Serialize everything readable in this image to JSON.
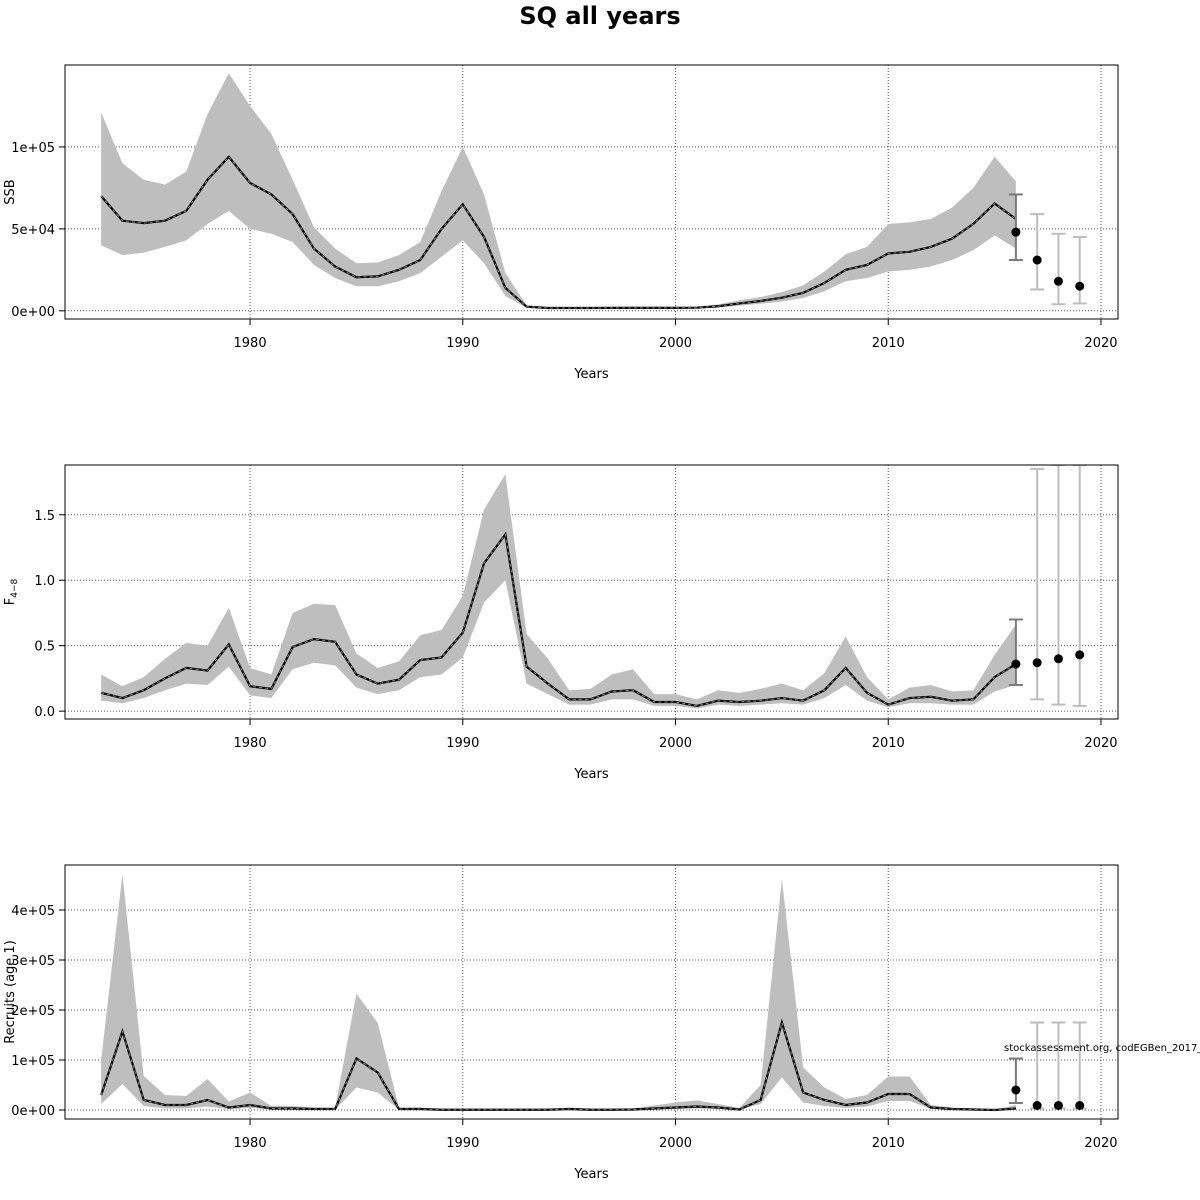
{
  "figure": {
    "title": "SQ all years",
    "source_note": "stockassessment.org, codEGBen_2017_"
  },
  "chart_data": [
    {
      "type": "line",
      "ylabel": "SSB",
      "xlabel": "Years",
      "xlim": [
        1971.3,
        2020.8
      ],
      "ylim": [
        -5000,
        150000
      ],
      "xticks": [
        1980,
        1990,
        2000,
        2010,
        2020
      ],
      "xtick_labels": [
        "1980",
        "1990",
        "2000",
        "2010",
        "2020"
      ],
      "yticks": [
        0,
        50000,
        100000
      ],
      "ytick_labels": [
        "0e+00",
        "5e+04",
        "1e+05"
      ],
      "grid": true,
      "series": [
        {
          "x": [
            1973,
            1974,
            1975,
            1976,
            1977,
            1978,
            1979,
            1980,
            1981,
            1982,
            1983,
            1984,
            1985,
            1986,
            1987,
            1988,
            1989,
            1990,
            1991,
            1992,
            1993,
            1994,
            1995,
            1996,
            1997,
            1998,
            1999,
            2000,
            2001,
            2002,
            2003,
            2004,
            2005,
            2006,
            2007,
            2008,
            2009,
            2010,
            2011,
            2012,
            2013,
            2014,
            2015,
            2016
          ],
          "estimate": [
            70000,
            55000,
            53500,
            55000,
            61000,
            80000,
            94000,
            78000,
            71000,
            59000,
            38000,
            27000,
            20500,
            21000,
            25000,
            31000,
            50000,
            65000,
            45000,
            14000,
            2500,
            1700,
            1700,
            1700,
            1800,
            1800,
            1800,
            1800,
            1900,
            2800,
            4500,
            6000,
            8000,
            11000,
            17000,
            25000,
            28000,
            35000,
            36000,
            39000,
            44000,
            53000,
            65500,
            56000
          ],
          "lower": [
            40000,
            34000,
            35500,
            39000,
            43000,
            53000,
            61000,
            50000,
            47000,
            42000,
            28000,
            20000,
            15000,
            15000,
            18000,
            23000,
            33000,
            43000,
            29000,
            9000,
            1800,
            1200,
            1200,
            1200,
            1300,
            1300,
            1300,
            1300,
            1400,
            2000,
            3200,
            4300,
            5700,
            7800,
            11900,
            18000,
            20000,
            24000,
            25000,
            27000,
            31000,
            37000,
            46000,
            38000
          ],
          "upper": [
            121000,
            90000,
            80000,
            77000,
            85000,
            120000,
            145000,
            125000,
            108000,
            80000,
            51000,
            38000,
            29000,
            29500,
            34000,
            42000,
            73000,
            100000,
            71000,
            23000,
            3400,
            2400,
            2400,
            2400,
            2500,
            2500,
            2500,
            2500,
            2600,
            3900,
            6400,
            8400,
            11400,
            15500,
            24000,
            34500,
            39000,
            53000,
            54000,
            56000,
            63000,
            75000,
            94000,
            79000
          ]
        }
      ],
      "forecast": {
        "x": [
          2016,
          2017,
          2018,
          2019
        ],
        "values": [
          48000,
          31000,
          18000,
          15000
        ],
        "lower": [
          31000,
          13000,
          4000,
          4500
        ],
        "upper": [
          71000,
          59000,
          47000,
          45000
        ]
      }
    },
    {
      "type": "line",
      "ylabel": "F4–8",
      "ylabel_main": "F",
      "ylabel_sub": "4−8",
      "xlabel": "Years",
      "xlim": [
        1971.3,
        2020.8
      ],
      "ylim": [
        -0.06,
        1.88
      ],
      "xticks": [
        1980,
        1990,
        2000,
        2010,
        2020
      ],
      "xtick_labels": [
        "1980",
        "1990",
        "2000",
        "2010",
        "2020"
      ],
      "yticks": [
        0,
        0.5,
        1.0,
        1.5
      ],
      "ytick_labels": [
        "0.0",
        "0.5",
        "1.0",
        "1.5"
      ],
      "grid": true,
      "series": [
        {
          "x": [
            1973,
            1974,
            1975,
            1976,
            1977,
            1978,
            1979,
            1980,
            1981,
            1982,
            1983,
            1984,
            1985,
            1986,
            1987,
            1988,
            1989,
            1990,
            1991,
            1992,
            1993,
            1994,
            1995,
            1996,
            1997,
            1998,
            1999,
            2000,
            2001,
            2002,
            2003,
            2004,
            2005,
            2006,
            2007,
            2008,
            2009,
            2010,
            2011,
            2012,
            2013,
            2014,
            2015,
            2016
          ],
          "estimate": [
            0.14,
            0.1,
            0.16,
            0.25,
            0.33,
            0.31,
            0.51,
            0.19,
            0.17,
            0.49,
            0.55,
            0.53,
            0.28,
            0.21,
            0.24,
            0.39,
            0.41,
            0.6,
            1.13,
            1.35,
            0.34,
            0.21,
            0.09,
            0.09,
            0.15,
            0.16,
            0.07,
            0.07,
            0.04,
            0.08,
            0.07,
            0.08,
            0.1,
            0.08,
            0.16,
            0.33,
            0.14,
            0.05,
            0.1,
            0.11,
            0.08,
            0.09,
            0.26,
            0.36
          ],
          "lower": [
            0.08,
            0.06,
            0.1,
            0.16,
            0.21,
            0.2,
            0.34,
            0.12,
            0.1,
            0.32,
            0.37,
            0.35,
            0.18,
            0.13,
            0.16,
            0.26,
            0.28,
            0.41,
            0.83,
            1.0,
            0.21,
            0.13,
            0.05,
            0.05,
            0.09,
            0.09,
            0.04,
            0.04,
            0.02,
            0.05,
            0.04,
            0.05,
            0.06,
            0.05,
            0.1,
            0.2,
            0.08,
            0.03,
            0.06,
            0.06,
            0.05,
            0.05,
            0.15,
            0.2
          ],
          "upper": [
            0.28,
            0.19,
            0.26,
            0.4,
            0.52,
            0.5,
            0.79,
            0.33,
            0.28,
            0.75,
            0.82,
            0.81,
            0.44,
            0.33,
            0.38,
            0.58,
            0.62,
            0.88,
            1.54,
            1.81,
            0.59,
            0.4,
            0.16,
            0.17,
            0.28,
            0.32,
            0.13,
            0.13,
            0.09,
            0.16,
            0.14,
            0.17,
            0.21,
            0.16,
            0.29,
            0.57,
            0.26,
            0.09,
            0.18,
            0.2,
            0.15,
            0.16,
            0.43,
            0.66
          ]
        }
      ],
      "forecast": {
        "x": [
          2016,
          2017,
          2018,
          2019
        ],
        "values": [
          0.36,
          0.37,
          0.4,
          0.43
        ],
        "lower": [
          0.2,
          0.09,
          0.05,
          0.04
        ],
        "upper": [
          0.7,
          1.85,
          1.88,
          1.88
        ]
      }
    },
    {
      "type": "line",
      "ylabel": "Recruits (age 1)",
      "xlabel": "Years",
      "xlim": [
        1971.3,
        2020.8
      ],
      "ylim": [
        -18000,
        490000
      ],
      "xticks": [
        1980,
        1990,
        2000,
        2010,
        2020
      ],
      "xtick_labels": [
        "1980",
        "1990",
        "2000",
        "2010",
        "2020"
      ],
      "yticks": [
        0,
        100000,
        200000,
        300000,
        400000
      ],
      "ytick_labels": [
        "0e+00",
        "1e+05",
        "2e+05",
        "3e+05",
        "4e+05"
      ],
      "grid": true,
      "series": [
        {
          "x": [
            1973,
            1974,
            1975,
            1976,
            1977,
            1978,
            1979,
            1980,
            1981,
            1982,
            1983,
            1984,
            1985,
            1986,
            1987,
            1988,
            1989,
            1990,
            1991,
            1992,
            1993,
            1994,
            1995,
            1996,
            1997,
            1998,
            1999,
            2000,
            2001,
            2002,
            2003,
            2004,
            2005,
            2006,
            2007,
            2008,
            2009,
            2010,
            2011,
            2012,
            2013,
            2014,
            2015,
            2016
          ],
          "estimate": [
            30000,
            157000,
            20000,
            10000,
            10000,
            20000,
            5000,
            10000,
            3000,
            3000,
            2000,
            2000,
            103000,
            75000,
            2000,
            2000,
            500,
            500,
            500,
            500,
            500,
            500,
            2000,
            500,
            500,
            1000,
            3000,
            5000,
            7000,
            5000,
            1000,
            20000,
            175000,
            35000,
            20000,
            10000,
            15000,
            32000,
            32000,
            5000,
            2000,
            1000,
            0,
            3000
          ],
          "lower": [
            12000,
            52000,
            8000,
            3000,
            3000,
            7000,
            1500,
            4000,
            1000,
            1000,
            700,
            700,
            45000,
            35000,
            700,
            700,
            200,
            200,
            200,
            200,
            200,
            200,
            700,
            200,
            200,
            300,
            1000,
            2000,
            3000,
            2000,
            500,
            12000,
            65000,
            15000,
            8000,
            4000,
            7000,
            18000,
            18000,
            2000,
            800,
            400,
            0,
            1500
          ],
          "upper": [
            100000,
            472000,
            68000,
            30000,
            28000,
            62000,
            17000,
            35000,
            8000,
            8000,
            5000,
            5000,
            233000,
            174000,
            5000,
            5000,
            1200,
            1200,
            1200,
            1200,
            1200,
            1200,
            5000,
            1200,
            1200,
            3000,
            9000,
            15000,
            19000,
            12000,
            4000,
            50000,
            462000,
            85000,
            45000,
            22000,
            30000,
            67000,
            67000,
            10000,
            5000,
            3000,
            200,
            10000
          ]
        }
      ],
      "forecast": {
        "x": [
          2016,
          2017,
          2018,
          2019
        ],
        "values": [
          40000,
          9000,
          9000,
          9000
        ],
        "lower": [
          14000,
          3000,
          3000,
          3000
        ],
        "upper": [
          103000,
          175000,
          175000,
          175000
        ]
      }
    }
  ]
}
